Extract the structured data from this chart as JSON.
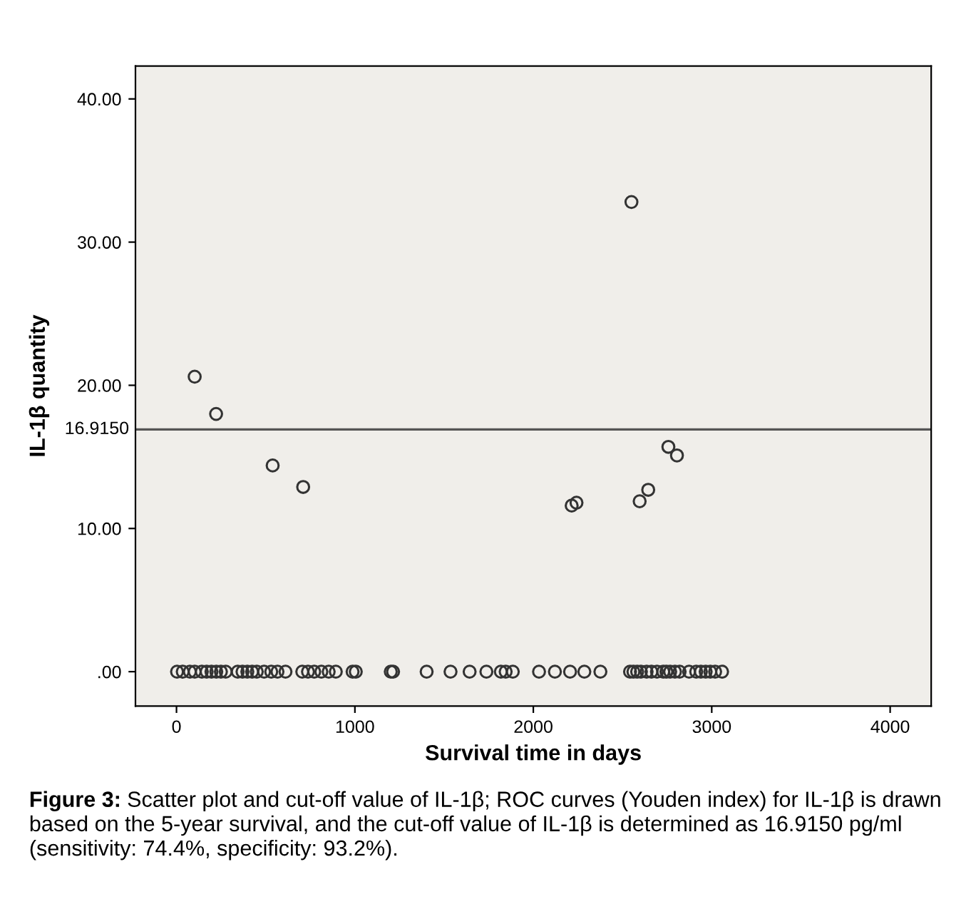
{
  "chart_data": {
    "type": "scatter",
    "xlabel": "Survival time in days",
    "ylabel": "IL-1β quantity",
    "series": [
      {
        "color": "#333333",
        "x": [
          3,
          35,
          75,
          102,
          142,
          169,
          196,
          223,
          249,
          276,
          343,
          370,
          397,
          424,
          450,
          491,
          531,
          566,
          611,
          705,
          737,
          772,
          812,
          853,
          893,
          987,
          1005,
          1201,
          1214,
          1402,
          1536,
          1643,
          1737,
          1818,
          1845,
          1885,
          2032,
          2121,
          2206,
          2286,
          2376,
          2542,
          2561,
          2582,
          2603,
          2635,
          2662,
          2693,
          2728,
          2746,
          2767,
          2794,
          2820,
          2873,
          2913,
          2939,
          2966,
          2992,
          3019,
          3058,
          102,
          222,
          539,
          710,
          2215,
          2242,
          2596,
          2644,
          2757,
          2805,
          2550
        ],
        "values": [
          0,
          0,
          0,
          0,
          0,
          0,
          0,
          0,
          0,
          0,
          0,
          0,
          0,
          0,
          0,
          0,
          0,
          0,
          0,
          0,
          0,
          0,
          0,
          0,
          0,
          0,
          0,
          0,
          0,
          0,
          0,
          0,
          0,
          0,
          0,
          0,
          0,
          0,
          0,
          0,
          0,
          0,
          0,
          0,
          0,
          0,
          0,
          0,
          0,
          0,
          0,
          0,
          0,
          0,
          0,
          0,
          0,
          0,
          0,
          0,
          20.6,
          18.0,
          14.4,
          12.9,
          11.6,
          11.8,
          11.9,
          12.7,
          15.7,
          15.1,
          32.8
        ]
      }
    ],
    "marker": "circle",
    "xlim": [
      -230,
      4230
    ],
    "ylim": [
      -2.4,
      42.3
    ],
    "xticks": [
      0,
      1000,
      2000,
      3000,
      4000
    ],
    "yticks": [
      {
        "value": 0,
        "label": ".00"
      },
      {
        "value": 10,
        "label": "10.00"
      },
      {
        "value": 20,
        "label": "20.00"
      },
      {
        "value": 30,
        "label": "30.00"
      },
      {
        "value": 40,
        "label": "40.00"
      }
    ],
    "ref_lines": [
      {
        "axis": "y",
        "value": 16.915,
        "label": "16.9150",
        "color": "#555555"
      }
    ],
    "grid": false,
    "legend": false,
    "annotations": [
      "Figure 3:",
      "Scatter plot and cut-off value of IL-1β; ROC curves (Youden index) for IL-1β is drawn based on the 5-year survival, and the cut-off value of IL-1β is determined as 16.9150 pg/ml (sensitivity: 74.4%, specificity: 93.2%)."
    ]
  }
}
